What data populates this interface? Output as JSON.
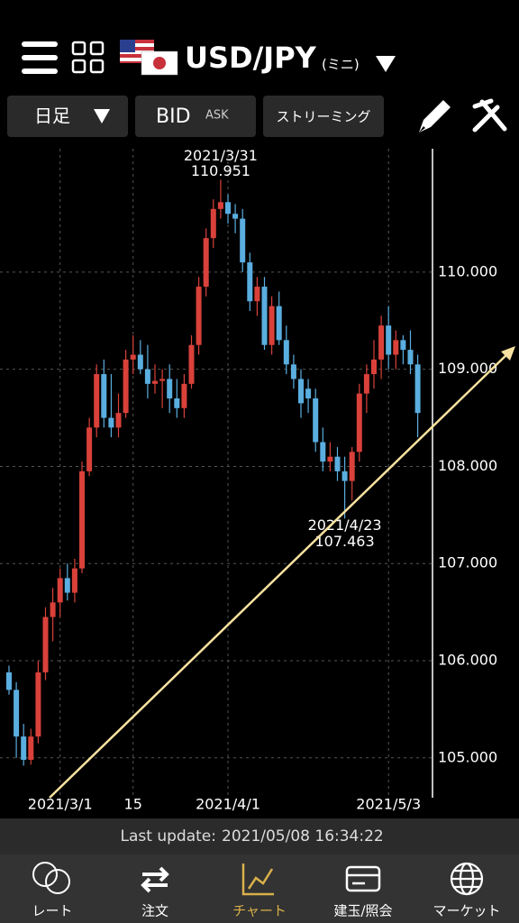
{
  "header": {
    "pair": "USD/JPY",
    "sub": "(ミニ)"
  },
  "toolbar": {
    "period": "日足",
    "bid": "BID",
    "ask": "ASK",
    "streaming": "ストリーミング"
  },
  "chart_data": {
    "type": "candlestick",
    "categories": [
      null,
      null,
      null,
      null,
      null,
      null,
      null,
      "2021/3/1",
      null,
      null,
      null,
      null,
      null,
      null,
      null,
      null,
      null,
      "15",
      null,
      null,
      null,
      null,
      null,
      null,
      null,
      null,
      null,
      null,
      null,
      null,
      "2021/4/1",
      null,
      null,
      null,
      null,
      null,
      null,
      null,
      null,
      null,
      null,
      null,
      null,
      null,
      null,
      null,
      null,
      null,
      null,
      null,
      null,
      null,
      "2021/5/3",
      null,
      null,
      null,
      null
    ],
    "open": [
      105.88,
      105.7,
      105.22,
      104.98,
      105.22,
      105.88,
      106.45,
      106.6,
      106.85,
      106.7,
      106.95,
      107.95,
      108.4,
      108.95,
      108.5,
      108.4,
      108.55,
      109.1,
      109.15,
      109.0,
      108.85,
      108.88,
      108.9,
      108.7,
      108.6,
      108.85,
      109.25,
      109.85,
      110.35,
      110.65,
      110.72,
      110.6,
      110.55,
      110.1,
      109.7,
      109.85,
      109.25,
      109.65,
      109.3,
      109.05,
      108.9,
      108.8,
      108.7,
      108.25,
      108.05,
      108.1,
      107.95,
      107.85,
      108.15,
      108.75,
      108.95,
      109.1,
      109.45,
      109.15,
      109.3,
      109.2,
      109.05
    ],
    "high": [
      105.95,
      105.78,
      105.35,
      105.3,
      106.0,
      106.55,
      106.75,
      106.95,
      107.0,
      107.05,
      108.05,
      108.5,
      109.05,
      109.1,
      108.95,
      108.75,
      109.2,
      109.35,
      109.3,
      109.25,
      109.05,
      109.0,
      109.05,
      108.9,
      108.95,
      109.35,
      109.95,
      110.45,
      110.75,
      110.951,
      110.8,
      110.7,
      110.65,
      110.2,
      109.95,
      109.95,
      109.75,
      109.8,
      109.45,
      109.15,
      109.0,
      108.9,
      108.8,
      108.4,
      108.25,
      108.2,
      108.1,
      108.2,
      108.85,
      109.05,
      109.3,
      109.55,
      109.65,
      109.4,
      109.35,
      109.4,
      109.15
    ],
    "low": [
      105.65,
      105.0,
      104.92,
      104.93,
      105.15,
      105.8,
      106.2,
      106.45,
      106.62,
      106.6,
      106.9,
      107.9,
      108.3,
      108.4,
      108.3,
      108.3,
      108.5,
      108.95,
      108.95,
      108.7,
      108.75,
      108.6,
      108.55,
      108.5,
      108.5,
      108.8,
      109.15,
      109.75,
      110.25,
      110.55,
      110.5,
      110.4,
      110.0,
      109.6,
      109.55,
      109.2,
      109.15,
      109.25,
      108.95,
      108.8,
      108.5,
      108.55,
      108.15,
      107.95,
      107.95,
      107.85,
      107.463,
      107.65,
      108.05,
      108.55,
      108.8,
      108.9,
      109.0,
      109.0,
      109.05,
      108.95,
      108.3
    ],
    "close": [
      105.7,
      105.22,
      104.98,
      105.22,
      105.88,
      106.45,
      106.6,
      106.85,
      106.7,
      106.95,
      107.95,
      108.4,
      108.95,
      108.5,
      108.4,
      108.55,
      109.1,
      109.15,
      109.0,
      108.85,
      108.88,
      108.9,
      108.7,
      108.6,
      108.85,
      109.25,
      109.85,
      110.35,
      110.65,
      110.72,
      110.6,
      110.55,
      110.1,
      109.7,
      109.85,
      109.25,
      109.65,
      109.3,
      109.05,
      108.9,
      108.65,
      108.7,
      108.25,
      108.05,
      108.1,
      107.95,
      107.85,
      108.15,
      108.75,
      108.95,
      109.1,
      109.45,
      109.15,
      109.3,
      109.2,
      109.05,
      108.55
    ],
    "up_color": "#d9413a",
    "down_color": "#5aaee0",
    "ylim": [
      104.59,
      111.27
    ],
    "yticks": [
      {
        "value": 105,
        "label": "105.000"
      },
      {
        "value": 106,
        "label": "106.000"
      },
      {
        "value": 107,
        "label": "107.000"
      },
      {
        "value": 108,
        "label": "108.000"
      },
      {
        "value": 109,
        "label": "109.000"
      },
      {
        "value": 110,
        "label": "110.000"
      }
    ],
    "grid": true,
    "annotations": [
      {
        "date": "2021/3/31",
        "value": 110.951
      },
      {
        "date": "2021/4/23",
        "value": 107.463
      }
    ]
  },
  "status": {
    "label": "Last update:",
    "time": "2021/05/08 16:34:22"
  },
  "tabs": [
    "レート",
    "注文",
    "チャート",
    "建玉/照会",
    "マーケット"
  ]
}
